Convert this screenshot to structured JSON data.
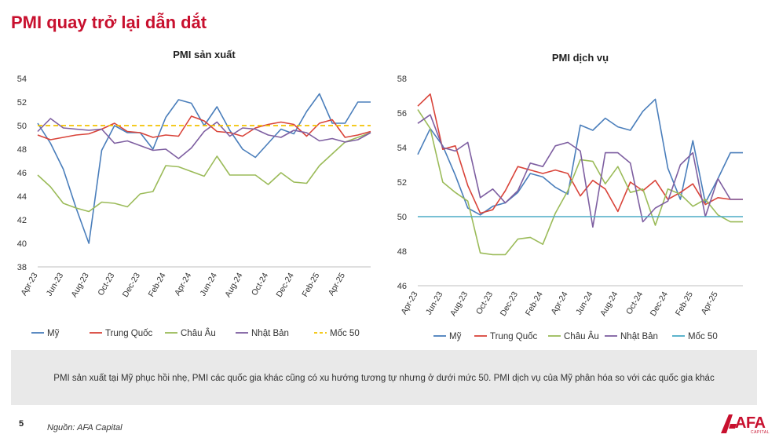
{
  "slide": {
    "title": "PMI quay trở lại dẫn dắt",
    "note": "PMI sản xuất tại Mỹ phục hồi nhẹ, PMI các quốc gia khác cũng có xu hướng tương tự nhưng ở dưới mức 50. PMI dịch vụ của Mỹ phân hóa so với các quốc gia khác",
    "page_number": "5",
    "source": "Nguồn: AFA Capital",
    "logo_text": "AFA",
    "logo_sub": "CAPITAL"
  },
  "colors": {
    "title": "#c8102e",
    "us": "#4a7ebb",
    "china": "#d9443a",
    "europe": "#9bbb59",
    "japan": "#7e5fa1",
    "baseline_left": "#f2c200",
    "baseline_right": "#4bacc6"
  },
  "chart_data": [
    {
      "type": "line",
      "title": "PMI sản xuất",
      "x": [
        "Apr-23",
        "May-23",
        "Jun-23",
        "Jul-23",
        "Aug-23",
        "Sep-23",
        "Oct-23",
        "Nov-23",
        "Dec-23",
        "Jan-24",
        "Feb-24",
        "Mar-24",
        "Apr-24",
        "May-24",
        "Jun-24",
        "Jul-24",
        "Aug-24",
        "Sep-24",
        "Oct-24",
        "Nov-24",
        "Dec-24",
        "Jan-25",
        "Feb-25",
        "Mar-25",
        "Apr-25",
        "May-25",
        "Jun-25"
      ],
      "tick_labels": [
        "Apr-23",
        "Jun-23",
        "Aug-23",
        "Oct-23",
        "Dec-23",
        "Feb-24",
        "Apr-24",
        "Jun-24",
        "Aug-24",
        "Oct-24",
        "Dec-24",
        "Feb-25",
        "Apr-25"
      ],
      "ylim": [
        38,
        54
      ],
      "yticks": [
        38,
        40,
        42,
        44,
        46,
        48,
        50,
        52,
        54
      ],
      "series": [
        {
          "name": "Mỹ",
          "color_key": "us",
          "values": [
            50.2,
            48.5,
            46.3,
            43.0,
            40.0,
            47.9,
            50.0,
            49.4,
            49.4,
            48.0,
            50.7,
            52.2,
            51.9,
            50.0,
            51.6,
            49.6,
            48.0,
            47.3,
            48.5,
            49.7,
            49.3,
            51.2,
            52.7,
            50.2,
            50.2,
            52.0,
            52.0
          ]
        },
        {
          "name": "Trung Quốc",
          "color_key": "china",
          "values": [
            49.2,
            48.8,
            49.0,
            49.2,
            49.3,
            49.7,
            50.2,
            49.5,
            49.4,
            49.0,
            49.2,
            49.1,
            50.8,
            50.4,
            49.5,
            49.4,
            49.1,
            49.8,
            50.1,
            50.3,
            50.1,
            49.1,
            50.2,
            50.5,
            49.0,
            49.2,
            49.5
          ]
        },
        {
          "name": "Châu Âu",
          "color_key": "europe",
          "values": [
            45.8,
            44.8,
            43.4,
            43.0,
            42.7,
            43.5,
            43.4,
            43.1,
            44.2,
            44.4,
            46.6,
            46.5,
            46.1,
            45.7,
            47.4,
            45.8,
            45.8,
            45.8,
            45.0,
            46.0,
            45.2,
            45.1,
            46.6,
            47.6,
            48.6,
            49.0,
            49.4
          ]
        },
        {
          "name": "Nhật Bản",
          "color_key": "japan",
          "values": [
            49.5,
            50.6,
            49.8,
            49.7,
            49.6,
            49.7,
            48.5,
            48.7,
            48.3,
            47.9,
            48.0,
            47.2,
            48.1,
            49.5,
            50.3,
            49.1,
            49.8,
            49.7,
            49.2,
            49.0,
            49.6,
            49.4,
            48.7,
            48.9,
            48.6,
            48.8,
            49.4
          ]
        },
        {
          "name": "Mốc 50",
          "color_key": "baseline_left",
          "dashed": true,
          "values": [
            50,
            50,
            50,
            50,
            50,
            50,
            50,
            50,
            50,
            50,
            50,
            50,
            50,
            50,
            50,
            50,
            50,
            50,
            50,
            50,
            50,
            50,
            50,
            50,
            50,
            50,
            50
          ]
        }
      ],
      "legend_position": "bottom"
    },
    {
      "type": "line",
      "title": "PMI dịch vụ",
      "x": [
        "Apr-23",
        "May-23",
        "Jun-23",
        "Jul-23",
        "Aug-23",
        "Sep-23",
        "Oct-23",
        "Nov-23",
        "Dec-23",
        "Jan-24",
        "Feb-24",
        "Mar-24",
        "Apr-24",
        "May-24",
        "Jun-24",
        "Jul-24",
        "Aug-24",
        "Sep-24",
        "Oct-24",
        "Nov-24",
        "Dec-24",
        "Jan-25",
        "Feb-25",
        "Mar-25",
        "Apr-25",
        "May-25",
        "Jun-25"
      ],
      "tick_labels": [
        "Apr-23",
        "Jun-23",
        "Aug-23",
        "Oct-23",
        "Dec-23",
        "Feb-24",
        "Apr-24",
        "Jun-24",
        "Aug-24",
        "Oct-24",
        "Dec-24",
        "Feb-25",
        "Apr-25"
      ],
      "ylim": [
        46,
        58
      ],
      "yticks": [
        46,
        48,
        50,
        52,
        54,
        56,
        58
      ],
      "series": [
        {
          "name": "Mỹ",
          "color_key": "us",
          "values": [
            53.6,
            55.1,
            54.1,
            52.4,
            50.5,
            50.1,
            50.6,
            50.8,
            51.4,
            52.5,
            52.3,
            51.7,
            51.3,
            55.3,
            55.0,
            55.7,
            55.2,
            55.0,
            56.1,
            56.8,
            52.8,
            51.0,
            54.4,
            50.8,
            52.2,
            53.7,
            53.7
          ]
        },
        {
          "name": "Trung Quốc",
          "color_key": "china",
          "values": [
            56.4,
            57.1,
            53.9,
            54.1,
            51.8,
            50.2,
            50.4,
            51.5,
            52.9,
            52.7,
            52.5,
            52.7,
            52.5,
            51.2,
            52.1,
            51.6,
            50.3,
            52.0,
            51.5,
            52.1,
            51.0,
            51.4,
            51.9,
            50.7,
            51.1,
            51.0,
            51.0
          ]
        },
        {
          "name": "Châu Âu",
          "color_key": "europe",
          "values": [
            56.2,
            55.1,
            52.0,
            51.4,
            50.9,
            47.9,
            47.8,
            47.8,
            48.7,
            48.8,
            48.4,
            50.2,
            51.5,
            53.3,
            53.2,
            51.9,
            52.9,
            51.4,
            51.6,
            49.5,
            51.6,
            51.3,
            50.6,
            51.0,
            50.1,
            49.7,
            49.7
          ]
        },
        {
          "name": "Nhật Bản",
          "color_key": "japan",
          "values": [
            55.4,
            55.9,
            54.0,
            53.8,
            54.3,
            51.1,
            51.6,
            50.8,
            51.5,
            53.1,
            52.9,
            54.1,
            54.3,
            53.8,
            49.4,
            53.7,
            53.7,
            53.1,
            49.7,
            50.5,
            50.9,
            53.0,
            53.7,
            50.0,
            52.2,
            51.0,
            51.0
          ]
        },
        {
          "name": "Mốc 50",
          "color_key": "baseline_right",
          "dashed": false,
          "values": [
            50,
            50,
            50,
            50,
            50,
            50,
            50,
            50,
            50,
            50,
            50,
            50,
            50,
            50,
            50,
            50,
            50,
            50,
            50,
            50,
            50,
            50,
            50,
            50,
            50,
            50,
            50
          ]
        }
      ],
      "legend_position": "bottom"
    }
  ]
}
